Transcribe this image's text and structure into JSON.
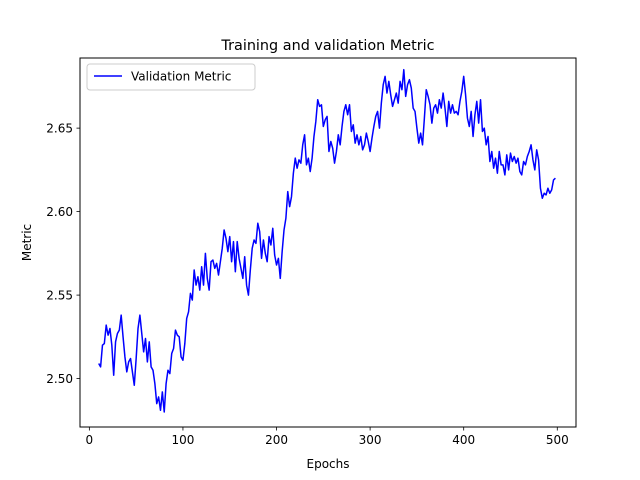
{
  "chart_data": {
    "type": "line",
    "title": "Training and validation Metric",
    "xlabel": "Epochs",
    "ylabel": "Metric",
    "xlim": [
      -10,
      520
    ],
    "ylim": [
      2.471,
      2.692
    ],
    "xticks": [
      0,
      100,
      200,
      300,
      400,
      500
    ],
    "yticks": [
      2.5,
      2.55,
      2.6,
      2.65
    ],
    "xtick_labels": [
      "0",
      "100",
      "200",
      "300",
      "400",
      "500"
    ],
    "ytick_labels": [
      "2.50",
      "2.55",
      "2.60",
      "2.65"
    ],
    "grid": false,
    "legend": {
      "position": "top-left",
      "entries": [
        "Validation Metric"
      ]
    },
    "series": [
      {
        "name": "Validation Metric",
        "color": "#0000ff",
        "points": [
          [
            10,
            2.509
          ],
          [
            12,
            2.507
          ],
          [
            14,
            2.52
          ],
          [
            16,
            2.521
          ],
          [
            18,
            2.532
          ],
          [
            20,
            2.526
          ],
          [
            22,
            2.53
          ],
          [
            24,
            2.52
          ],
          [
            26,
            2.502
          ],
          [
            28,
            2.522
          ],
          [
            30,
            2.527
          ],
          [
            32,
            2.529
          ],
          [
            34,
            2.538
          ],
          [
            36,
            2.525
          ],
          [
            38,
            2.513
          ],
          [
            40,
            2.504
          ],
          [
            42,
            2.51
          ],
          [
            44,
            2.512
          ],
          [
            46,
            2.504
          ],
          [
            48,
            2.496
          ],
          [
            50,
            2.512
          ],
          [
            52,
            2.53
          ],
          [
            54,
            2.538
          ],
          [
            56,
            2.527
          ],
          [
            58,
            2.516
          ],
          [
            60,
            2.524
          ],
          [
            62,
            2.51
          ],
          [
            64,
            2.522
          ],
          [
            66,
            2.507
          ],
          [
            68,
            2.505
          ],
          [
            70,
            2.497
          ],
          [
            72,
            2.485
          ],
          [
            74,
            2.489
          ],
          [
            76,
            2.481
          ],
          [
            78,
            2.492
          ],
          [
            80,
            2.48
          ],
          [
            82,
            2.497
          ],
          [
            84,
            2.505
          ],
          [
            86,
            2.503
          ],
          [
            88,
            2.515
          ],
          [
            90,
            2.518
          ],
          [
            92,
            2.529
          ],
          [
            94,
            2.526
          ],
          [
            96,
            2.525
          ],
          [
            98,
            2.513
          ],
          [
            100,
            2.511
          ],
          [
            102,
            2.521
          ],
          [
            104,
            2.536
          ],
          [
            106,
            2.54
          ],
          [
            108,
            2.551
          ],
          [
            110,
            2.547
          ],
          [
            112,
            2.565
          ],
          [
            114,
            2.556
          ],
          [
            116,
            2.561
          ],
          [
            118,
            2.553
          ],
          [
            120,
            2.567
          ],
          [
            122,
            2.556
          ],
          [
            124,
            2.575
          ],
          [
            126,
            2.56
          ],
          [
            128,
            2.553
          ],
          [
            130,
            2.57
          ],
          [
            132,
            2.571
          ],
          [
            134,
            2.566
          ],
          [
            136,
            2.569
          ],
          [
            138,
            2.562
          ],
          [
            140,
            2.57
          ],
          [
            142,
            2.578
          ],
          [
            144,
            2.589
          ],
          [
            146,
            2.584
          ],
          [
            148,
            2.576
          ],
          [
            150,
            2.585
          ],
          [
            152,
            2.57
          ],
          [
            154,
            2.582
          ],
          [
            156,
            2.564
          ],
          [
            158,
            2.582
          ],
          [
            160,
            2.572
          ],
          [
            162,
            2.566
          ],
          [
            164,
            2.56
          ],
          [
            166,
            2.573
          ],
          [
            168,
            2.556
          ],
          [
            170,
            2.55
          ],
          [
            172,
            2.565
          ],
          [
            174,
            2.578
          ],
          [
            176,
            2.583
          ],
          [
            178,
            2.581
          ],
          [
            180,
            2.593
          ],
          [
            182,
            2.588
          ],
          [
            184,
            2.572
          ],
          [
            186,
            2.583
          ],
          [
            188,
            2.575
          ],
          [
            190,
            2.57
          ],
          [
            192,
            2.585
          ],
          [
            194,
            2.58
          ],
          [
            196,
            2.59
          ],
          [
            198,
            2.574
          ],
          [
            200,
            2.568
          ],
          [
            202,
            2.572
          ],
          [
            204,
            2.56
          ],
          [
            206,
            2.576
          ],
          [
            208,
            2.589
          ],
          [
            210,
            2.596
          ],
          [
            212,
            2.612
          ],
          [
            214,
            2.603
          ],
          [
            216,
            2.609
          ],
          [
            218,
            2.623
          ],
          [
            220,
            2.632
          ],
          [
            222,
            2.626
          ],
          [
            224,
            2.631
          ],
          [
            226,
            2.629
          ],
          [
            228,
            2.64
          ],
          [
            230,
            2.646
          ],
          [
            232,
            2.628
          ],
          [
            234,
            2.632
          ],
          [
            236,
            2.624
          ],
          [
            238,
            2.632
          ],
          [
            240,
            2.645
          ],
          [
            242,
            2.654
          ],
          [
            244,
            2.667
          ],
          [
            246,
            2.663
          ],
          [
            248,
            2.664
          ],
          [
            250,
            2.651
          ],
          [
            252,
            2.655
          ],
          [
            254,
            2.657
          ],
          [
            256,
            2.636
          ],
          [
            258,
            2.642
          ],
          [
            260,
            2.638
          ],
          [
            262,
            2.629
          ],
          [
            264,
            2.636
          ],
          [
            266,
            2.646
          ],
          [
            268,
            2.64
          ],
          [
            270,
            2.651
          ],
          [
            272,
            2.66
          ],
          [
            274,
            2.664
          ],
          [
            276,
            2.658
          ],
          [
            278,
            2.664
          ],
          [
            280,
            2.648
          ],
          [
            282,
            2.652
          ],
          [
            284,
            2.641
          ],
          [
            286,
            2.646
          ],
          [
            288,
            2.64
          ],
          [
            290,
            2.645
          ],
          [
            292,
            2.637
          ],
          [
            294,
            2.64
          ],
          [
            296,
            2.647
          ],
          [
            298,
            2.642
          ],
          [
            300,
            2.636
          ],
          [
            302,
            2.644
          ],
          [
            304,
            2.651
          ],
          [
            306,
            2.657
          ],
          [
            308,
            2.66
          ],
          [
            310,
            2.65
          ],
          [
            312,
            2.665
          ],
          [
            314,
            2.676
          ],
          [
            316,
            2.681
          ],
          [
            318,
            2.671
          ],
          [
            320,
            2.678
          ],
          [
            322,
            2.67
          ],
          [
            324,
            2.663
          ],
          [
            326,
            2.667
          ],
          [
            328,
            2.671
          ],
          [
            330,
            2.665
          ],
          [
            332,
            2.678
          ],
          [
            334,
            2.673
          ],
          [
            336,
            2.685
          ],
          [
            338,
            2.669
          ],
          [
            340,
            2.676
          ],
          [
            342,
            2.679
          ],
          [
            344,
            2.674
          ],
          [
            346,
            2.662
          ],
          [
            348,
            2.66
          ],
          [
            350,
            2.65
          ],
          [
            352,
            2.641
          ],
          [
            354,
            2.647
          ],
          [
            356,
            2.64
          ],
          [
            358,
            2.656
          ],
          [
            360,
            2.673
          ],
          [
            362,
            2.669
          ],
          [
            364,
            2.664
          ],
          [
            366,
            2.653
          ],
          [
            368,
            2.662
          ],
          [
            370,
            2.664
          ],
          [
            372,
            2.659
          ],
          [
            374,
            2.667
          ],
          [
            376,
            2.662
          ],
          [
            378,
            2.671
          ],
          [
            380,
            2.662
          ],
          [
            382,
            2.651
          ],
          [
            384,
            2.666
          ],
          [
            386,
            2.659
          ],
          [
            388,
            2.664
          ],
          [
            390,
            2.659
          ],
          [
            392,
            2.66
          ],
          [
            394,
            2.658
          ],
          [
            396,
            2.666
          ],
          [
            398,
            2.672
          ],
          [
            400,
            2.681
          ],
          [
            402,
            2.67
          ],
          [
            404,
            2.656
          ],
          [
            406,
            2.651
          ],
          [
            408,
            2.66
          ],
          [
            410,
            2.645
          ],
          [
            412,
            2.658
          ],
          [
            414,
            2.666
          ],
          [
            416,
            2.653
          ],
          [
            418,
            2.667
          ],
          [
            420,
            2.648
          ],
          [
            422,
            2.65
          ],
          [
            424,
            2.64
          ],
          [
            426,
            2.645
          ],
          [
            428,
            2.63
          ],
          [
            430,
            2.636
          ],
          [
            432,
            2.626
          ],
          [
            434,
            2.632
          ],
          [
            436,
            2.623
          ],
          [
            438,
            2.636
          ],
          [
            440,
            2.628
          ],
          [
            442,
            2.628
          ],
          [
            444,
            2.622
          ],
          [
            446,
            2.634
          ],
          [
            448,
            2.625
          ],
          [
            450,
            2.635
          ],
          [
            452,
            2.63
          ],
          [
            454,
            2.633
          ],
          [
            456,
            2.629
          ],
          [
            458,
            2.632
          ],
          [
            460,
            2.624
          ],
          [
            462,
            2.622
          ],
          [
            464,
            2.63
          ],
          [
            466,
            2.628
          ],
          [
            468,
            2.633
          ],
          [
            470,
            2.636
          ],
          [
            472,
            2.64
          ],
          [
            474,
            2.631
          ],
          [
            476,
            2.625
          ],
          [
            478,
            2.637
          ],
          [
            480,
            2.631
          ],
          [
            482,
            2.614
          ],
          [
            484,
            2.608
          ],
          [
            486,
            2.611
          ],
          [
            488,
            2.61
          ],
          [
            490,
            2.614
          ],
          [
            492,
            2.611
          ],
          [
            494,
            2.613
          ],
          [
            496,
            2.619
          ],
          [
            498,
            2.62
          ]
        ]
      }
    ]
  }
}
